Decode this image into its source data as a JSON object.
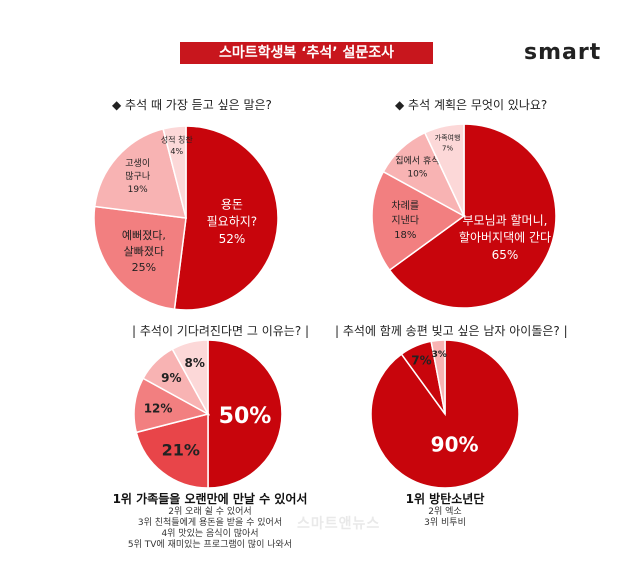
{
  "header": {
    "title": "스마트학생복 ‘추석’ 설문조사",
    "logo": "smart",
    "watermark": "스마트앤뉴스"
  },
  "colors": {
    "banner": "#c8161d",
    "palette": [
      "#c8050c",
      "#e84549",
      "#f27f80",
      "#f8b3b3",
      "#fcd8d8"
    ]
  },
  "chart_data": [
    {
      "type": "pie",
      "title": "◆ 추석 때 가장 듣고 싶은 말은?",
      "slices": [
        {
          "label": "용돈 필요하지?",
          "value": 52
        },
        {
          "label": "예뻐졌다, 살빠졌다",
          "value": 25
        },
        {
          "label": "고생이 많구나",
          "value": 19
        },
        {
          "label": "성적 칭찬",
          "value": 4
        }
      ]
    },
    {
      "type": "pie",
      "title": "◆ 추석 계획은 무엇이 있나요?",
      "slices": [
        {
          "label": "부모님과 할머니, 할아버지댁에 간다",
          "value": 65
        },
        {
          "label": "차례를 지낸다",
          "value": 18
        },
        {
          "label": "집에서 휴식",
          "value": 10
        },
        {
          "label": "가족여행",
          "value": 7
        }
      ]
    },
    {
      "type": "pie",
      "title": "| 추석이 기다려진다면 그 이유는? |",
      "slices": [
        {
          "label": "",
          "value": 50
        },
        {
          "label": "",
          "value": 21
        },
        {
          "label": "",
          "value": 12
        },
        {
          "label": "",
          "value": 9
        },
        {
          "label": "",
          "value": 8
        }
      ],
      "answers": [
        "1위 가족들을 오랜만에 만날 수 있어서",
        "2위 오래 쉴 수 있어서",
        "3위 친척들에게 용돈을 받을 수 있어서",
        "4위 맛있는 음식이 많아서",
        "5위 TV에 재미있는 프로그램이 많이 나와서"
      ]
    },
    {
      "type": "pie",
      "title": "| 추석에 함께 송편 빚고 싶은 남자 아이돌은? |",
      "slices": [
        {
          "label": "",
          "value": 90
        },
        {
          "label": "",
          "value": 7
        },
        {
          "label": "",
          "value": 3
        }
      ],
      "answers": [
        "1위 방탄소년단",
        "2위 엑소",
        "3위 비투비"
      ]
    }
  ]
}
